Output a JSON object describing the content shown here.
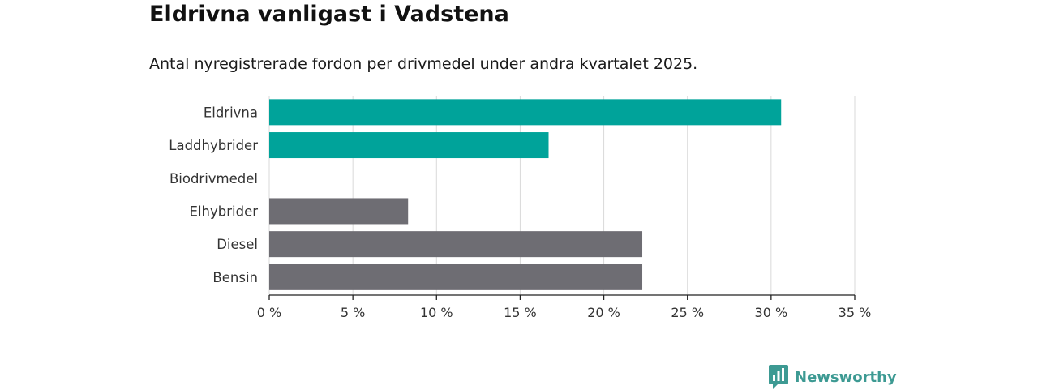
{
  "header": {
    "title": "Eldrivna vanligast i Vadstena",
    "subtitle": "Antal nyregistrerade fordon per drivmedel under andra kvartalet 2025."
  },
  "brand": {
    "name": "Newsworthy",
    "icon": "newsworthy-logo-icon"
  },
  "colors": {
    "highlight": "#00a39a",
    "other": "#6e6d73",
    "grid": "#d9d9d9",
    "axis": "#222222",
    "brand": "#3d9a93"
  },
  "chart_data": {
    "type": "bar",
    "orientation": "horizontal",
    "title": "Eldrivna vanligast i Vadstena",
    "subtitle": "Antal nyregistrerade fordon per drivmedel under andra kvartalet 2025.",
    "categories": [
      "Eldrivna",
      "Laddhybrider",
      "Biodrivmedel",
      "Elhybrider",
      "Diesel",
      "Bensin"
    ],
    "values": [
      30.6,
      16.7,
      0,
      8.3,
      22.3,
      22.3
    ],
    "highlighted": [
      true,
      true,
      false,
      false,
      false,
      false
    ],
    "xlim": [
      0,
      35
    ],
    "xticks": [
      0,
      5,
      10,
      15,
      20,
      25,
      30,
      35
    ],
    "xtick_labels": [
      "0 %",
      "5 %",
      "10 %",
      "15 %",
      "20 %",
      "25 %",
      "30 %",
      "35 %"
    ],
    "xlabel": "",
    "ylabel": "",
    "grid": "vertical",
    "legend": "none"
  }
}
